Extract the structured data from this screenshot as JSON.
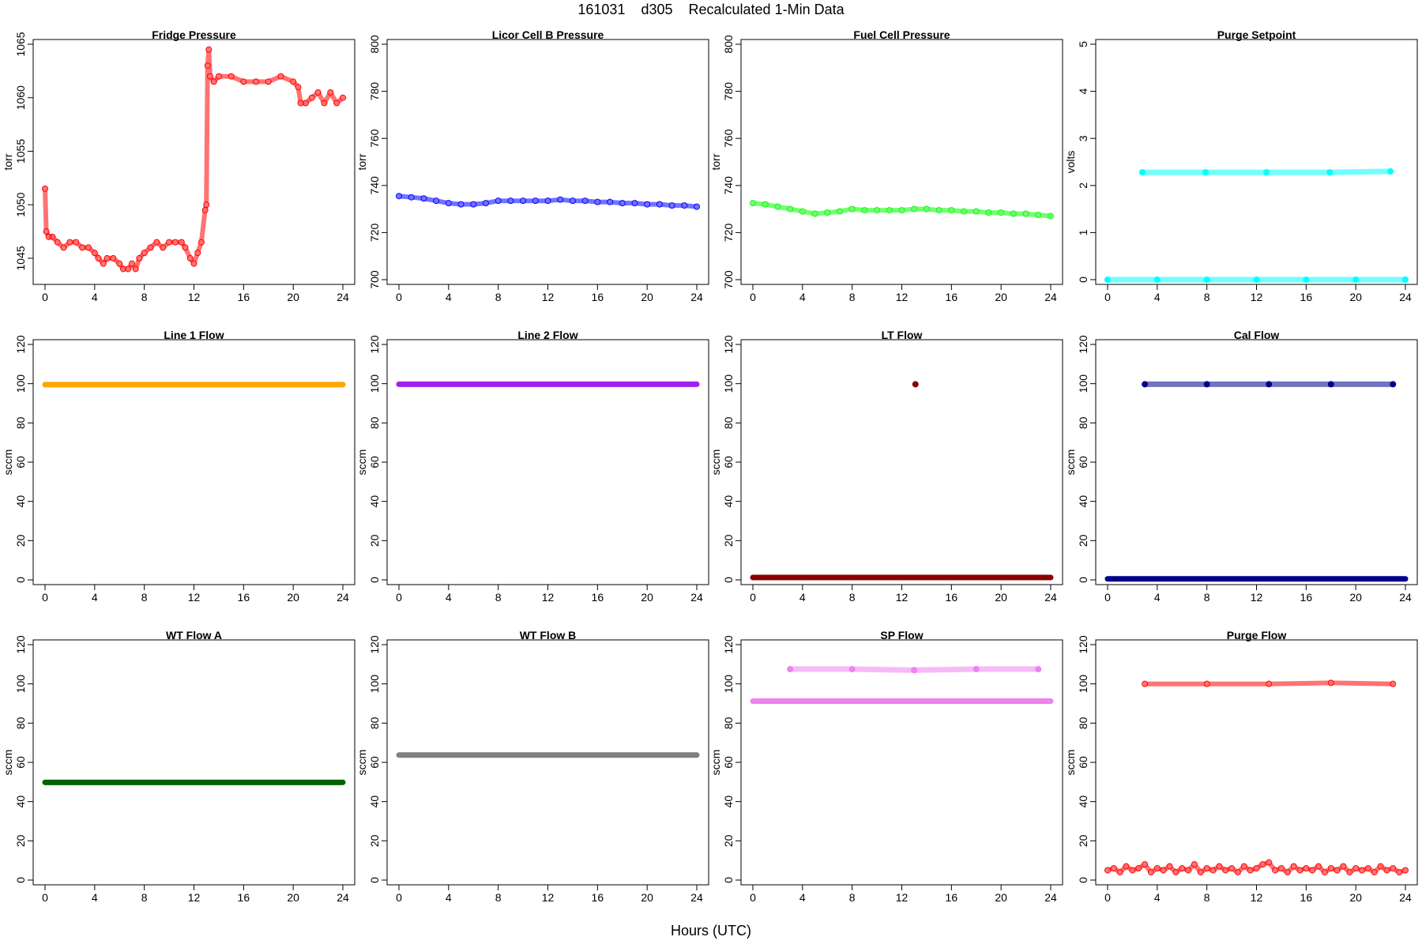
{
  "figure": {
    "title": "161031    d305    Recalculated 1-Min Data",
    "xlabel": "Hours (UTC)"
  },
  "chart_data": [
    {
      "type": "scatter",
      "title": "Fridge Pressure",
      "ylabel": "torr",
      "color": "#ff0000",
      "marker": "open",
      "xlim": [
        0,
        24
      ],
      "ylim": [
        1043,
        1065
      ],
      "xticks": [
        0,
        4,
        8,
        12,
        16,
        20,
        24
      ],
      "yticks": [
        1045,
        1050,
        1055,
        1060,
        1065
      ],
      "series": [
        {
          "x": [
            0,
            0.1,
            0.3,
            0.6,
            1,
            1.5,
            2,
            2.5,
            3,
            3.5,
            4,
            4.3,
            4.7,
            5,
            5.5,
            6,
            6.3,
            6.7,
            7,
            7.3,
            7.6,
            8,
            8.5,
            9,
            9.5,
            10,
            10.5,
            11,
            11.3,
            11.7,
            12,
            12.3,
            12.6,
            12.9,
            13.0,
            13.1,
            13.2,
            13.3,
            13.6,
            14,
            15,
            16,
            17,
            18,
            19,
            20,
            20.4,
            20.6,
            21,
            21.5,
            22,
            22.5,
            23,
            23.5,
            24
          ],
          "y": [
            1051.5,
            1047.5,
            1047,
            1047,
            1046.5,
            1046,
            1046.5,
            1046.5,
            1046,
            1046,
            1045.5,
            1045,
            1044.5,
            1045,
            1045,
            1044.5,
            1044,
            1044,
            1044.5,
            1044,
            1045,
            1045.5,
            1046,
            1046.5,
            1046,
            1046.5,
            1046.5,
            1046.5,
            1046,
            1045,
            1044.5,
            1045.5,
            1046.5,
            1049.5,
            1050,
            1063,
            1064.5,
            1062,
            1061.5,
            1062,
            1062,
            1061.5,
            1061.5,
            1061.5,
            1062,
            1061.5,
            1061,
            1059.5,
            1059.5,
            1060,
            1060.5,
            1059.5,
            1060.5,
            1059.5,
            1060
          ]
        }
      ]
    },
    {
      "type": "scatter",
      "title": "Licor Cell B Pressure",
      "ylabel": "torr",
      "color": "#0000ff",
      "marker": "open",
      "xlim": [
        0,
        24
      ],
      "ylim": [
        700,
        800
      ],
      "xticks": [
        0,
        4,
        8,
        12,
        16,
        20,
        24
      ],
      "yticks": [
        700,
        720,
        740,
        760,
        780,
        800
      ],
      "series": [
        {
          "x": [
            0,
            1,
            2,
            3,
            4,
            5,
            6,
            7,
            8,
            9,
            10,
            11,
            12,
            13,
            14,
            15,
            16,
            17,
            18,
            19,
            20,
            21,
            22,
            23,
            24
          ],
          "y": [
            735.5,
            735,
            734.5,
            733.5,
            732.5,
            732,
            732,
            732.5,
            733.5,
            733.5,
            733.5,
            733.5,
            733.5,
            734,
            733.5,
            733.5,
            733,
            733,
            732.5,
            732.5,
            732,
            732,
            731.5,
            731.5,
            731
          ]
        }
      ]
    },
    {
      "type": "scatter",
      "title": "Fuel Cell Pressure",
      "ylabel": "torr",
      "color": "#00ff00",
      "marker": "open",
      "xlim": [
        0,
        24
      ],
      "ylim": [
        700,
        800
      ],
      "xticks": [
        0,
        4,
        8,
        12,
        16,
        20,
        24
      ],
      "yticks": [
        700,
        720,
        740,
        760,
        780,
        800
      ],
      "series": [
        {
          "x": [
            0,
            1,
            2,
            3,
            4,
            5,
            6,
            7,
            8,
            9,
            10,
            11,
            12,
            13,
            14,
            15,
            16,
            17,
            18,
            19,
            20,
            21,
            22,
            23,
            24
          ],
          "y": [
            732.5,
            732,
            731,
            730,
            729,
            728,
            728.5,
            729,
            730,
            729.5,
            729.5,
            729.5,
            729.5,
            730,
            730,
            729.5,
            729.5,
            729,
            729,
            728.5,
            728.5,
            728,
            728,
            727.5,
            727
          ]
        }
      ]
    },
    {
      "type": "scatter",
      "title": "Purge Setpoint",
      "ylabel": "volts",
      "color": "#00ffff",
      "marker": "filled",
      "xlim": [
        0,
        24
      ],
      "ylim": [
        0,
        5
      ],
      "xticks": [
        0,
        4,
        8,
        12,
        16,
        20,
        24
      ],
      "yticks": [
        0,
        1,
        2,
        3,
        4,
        5
      ],
      "series": [
        {
          "x": [
            0,
            4,
            8,
            12,
            16,
            20,
            24
          ],
          "y": [
            0,
            0,
            0,
            0,
            0,
            0,
            0
          ]
        },
        {
          "x": [
            2.8,
            7.9,
            12.8,
            17.9,
            22.8
          ],
          "y": [
            2.28,
            2.28,
            2.28,
            2.28,
            2.3
          ]
        }
      ]
    },
    {
      "type": "scatter",
      "title": "Line 1 Flow",
      "ylabel": "sccm",
      "color": "#ffa500",
      "marker": "filled",
      "xlim": [
        0,
        24
      ],
      "ylim": [
        0,
        120
      ],
      "xticks": [
        0,
        4,
        8,
        12,
        16,
        20,
        24
      ],
      "yticks": [
        0,
        20,
        40,
        60,
        80,
        100,
        120
      ],
      "series": [
        {
          "x": [
            0,
            24
          ],
          "y": [
            99.5,
            99.5
          ]
        }
      ]
    },
    {
      "type": "scatter",
      "title": "Line 2 Flow",
      "ylabel": "sccm",
      "color": "#a020f0",
      "marker": "filled",
      "xlim": [
        0,
        24
      ],
      "ylim": [
        0,
        120
      ],
      "xticks": [
        0,
        4,
        8,
        12,
        16,
        20,
        24
      ],
      "yticks": [
        0,
        20,
        40,
        60,
        80,
        100,
        120
      ],
      "series": [
        {
          "x": [
            0,
            24
          ],
          "y": [
            99.7,
            99.7
          ]
        }
      ]
    },
    {
      "type": "scatter",
      "title": "LT Flow",
      "ylabel": "sccm",
      "color": "#8b0000",
      "marker": "filled",
      "xlim": [
        0,
        24
      ],
      "ylim": [
        0,
        120
      ],
      "xticks": [
        0,
        4,
        8,
        12,
        16,
        20,
        24
      ],
      "yticks": [
        0,
        20,
        40,
        60,
        80,
        100,
        120
      ],
      "series": [
        {
          "x": [
            0,
            24
          ],
          "y": [
            1.2,
            1.2
          ]
        },
        {
          "x": [
            13.1
          ],
          "y": [
            99.7
          ]
        }
      ]
    },
    {
      "type": "scatter",
      "title": "Cal Flow",
      "ylabel": "sccm",
      "color": "#00008b",
      "marker": "filled",
      "xlim": [
        0,
        24
      ],
      "ylim": [
        0,
        120
      ],
      "xticks": [
        0,
        4,
        8,
        12,
        16,
        20,
        24
      ],
      "yticks": [
        0,
        20,
        40,
        60,
        80,
        100,
        120
      ],
      "series": [
        {
          "x": [
            0,
            24
          ],
          "y": [
            0.5,
            0.5
          ]
        },
        {
          "x": [
            3,
            8,
            13,
            18,
            23
          ],
          "y": [
            99.7,
            99.7,
            99.7,
            99.7,
            99.7
          ]
        }
      ]
    },
    {
      "type": "scatter",
      "title": "WT Flow A",
      "ylabel": "sccm",
      "color": "#006400",
      "marker": "filled",
      "xlim": [
        0,
        24
      ],
      "ylim": [
        0,
        120
      ],
      "xticks": [
        0,
        4,
        8,
        12,
        16,
        20,
        24
      ],
      "yticks": [
        0,
        20,
        40,
        60,
        80,
        100,
        120
      ],
      "series": [
        {
          "x": [
            0,
            24
          ],
          "y": [
            49.8,
            49.8
          ]
        }
      ]
    },
    {
      "type": "scatter",
      "title": "WT Flow B",
      "ylabel": "sccm",
      "color": "#808080",
      "marker": "filled",
      "xlim": [
        0,
        24
      ],
      "ylim": [
        0,
        120
      ],
      "xticks": [
        0,
        4,
        8,
        12,
        16,
        20,
        24
      ],
      "yticks": [
        0,
        20,
        40,
        60,
        80,
        100,
        120
      ],
      "series": [
        {
          "x": [
            0,
            24
          ],
          "y": [
            63.7,
            63.7
          ]
        }
      ]
    },
    {
      "type": "scatter",
      "title": "SP Flow",
      "ylabel": "sccm",
      "color": "#ee82ee",
      "marker": "filled",
      "xlim": [
        0,
        24
      ],
      "ylim": [
        0,
        120
      ],
      "xticks": [
        0,
        4,
        8,
        12,
        16,
        20,
        24
      ],
      "yticks": [
        0,
        20,
        40,
        60,
        80,
        100,
        120
      ],
      "series": [
        {
          "x": [
            0,
            24
          ],
          "y": [
            91.2,
            91.2
          ]
        },
        {
          "x": [
            3,
            8,
            13,
            18,
            23
          ],
          "y": [
            107.5,
            107.5,
            107,
            107.5,
            107.5
          ]
        }
      ]
    },
    {
      "type": "scatter",
      "title": "Purge Flow",
      "ylabel": "sccm",
      "color": "#ff0000",
      "marker": "open",
      "xlim": [
        0,
        24
      ],
      "ylim": [
        0,
        120
      ],
      "xticks": [
        0,
        4,
        8,
        12,
        16,
        20,
        24
      ],
      "yticks": [
        0,
        20,
        40,
        60,
        80,
        100,
        120
      ],
      "series": [
        {
          "x": [
            0,
            0.5,
            1,
            1.5,
            2,
            2.5,
            3,
            3.5,
            4,
            4.5,
            5,
            5.5,
            6,
            6.5,
            7,
            7.5,
            8,
            8.5,
            9,
            9.5,
            10,
            10.5,
            11,
            11.5,
            12,
            12.5,
            13,
            13.5,
            14,
            14.5,
            15,
            15.5,
            16,
            16.5,
            17,
            17.5,
            18,
            18.5,
            19,
            19.5,
            20,
            20.5,
            21,
            21.5,
            22,
            22.5,
            23,
            23.5,
            24
          ],
          "y": [
            5,
            6,
            4,
            7,
            5,
            6,
            8,
            4,
            6,
            5,
            7,
            4,
            6,
            5,
            8,
            4,
            6,
            5,
            7,
            5,
            6,
            4,
            7,
            5,
            6,
            8,
            9,
            5,
            6,
            4,
            7,
            5,
            6,
            5,
            7,
            4,
            6,
            5,
            7,
            4,
            6,
            5,
            6,
            4,
            7,
            5,
            6,
            4,
            5
          ]
        },
        {
          "x": [
            3,
            8,
            13,
            18,
            23
          ],
          "y": [
            100,
            100,
            100,
            100.5,
            100
          ]
        }
      ]
    }
  ]
}
